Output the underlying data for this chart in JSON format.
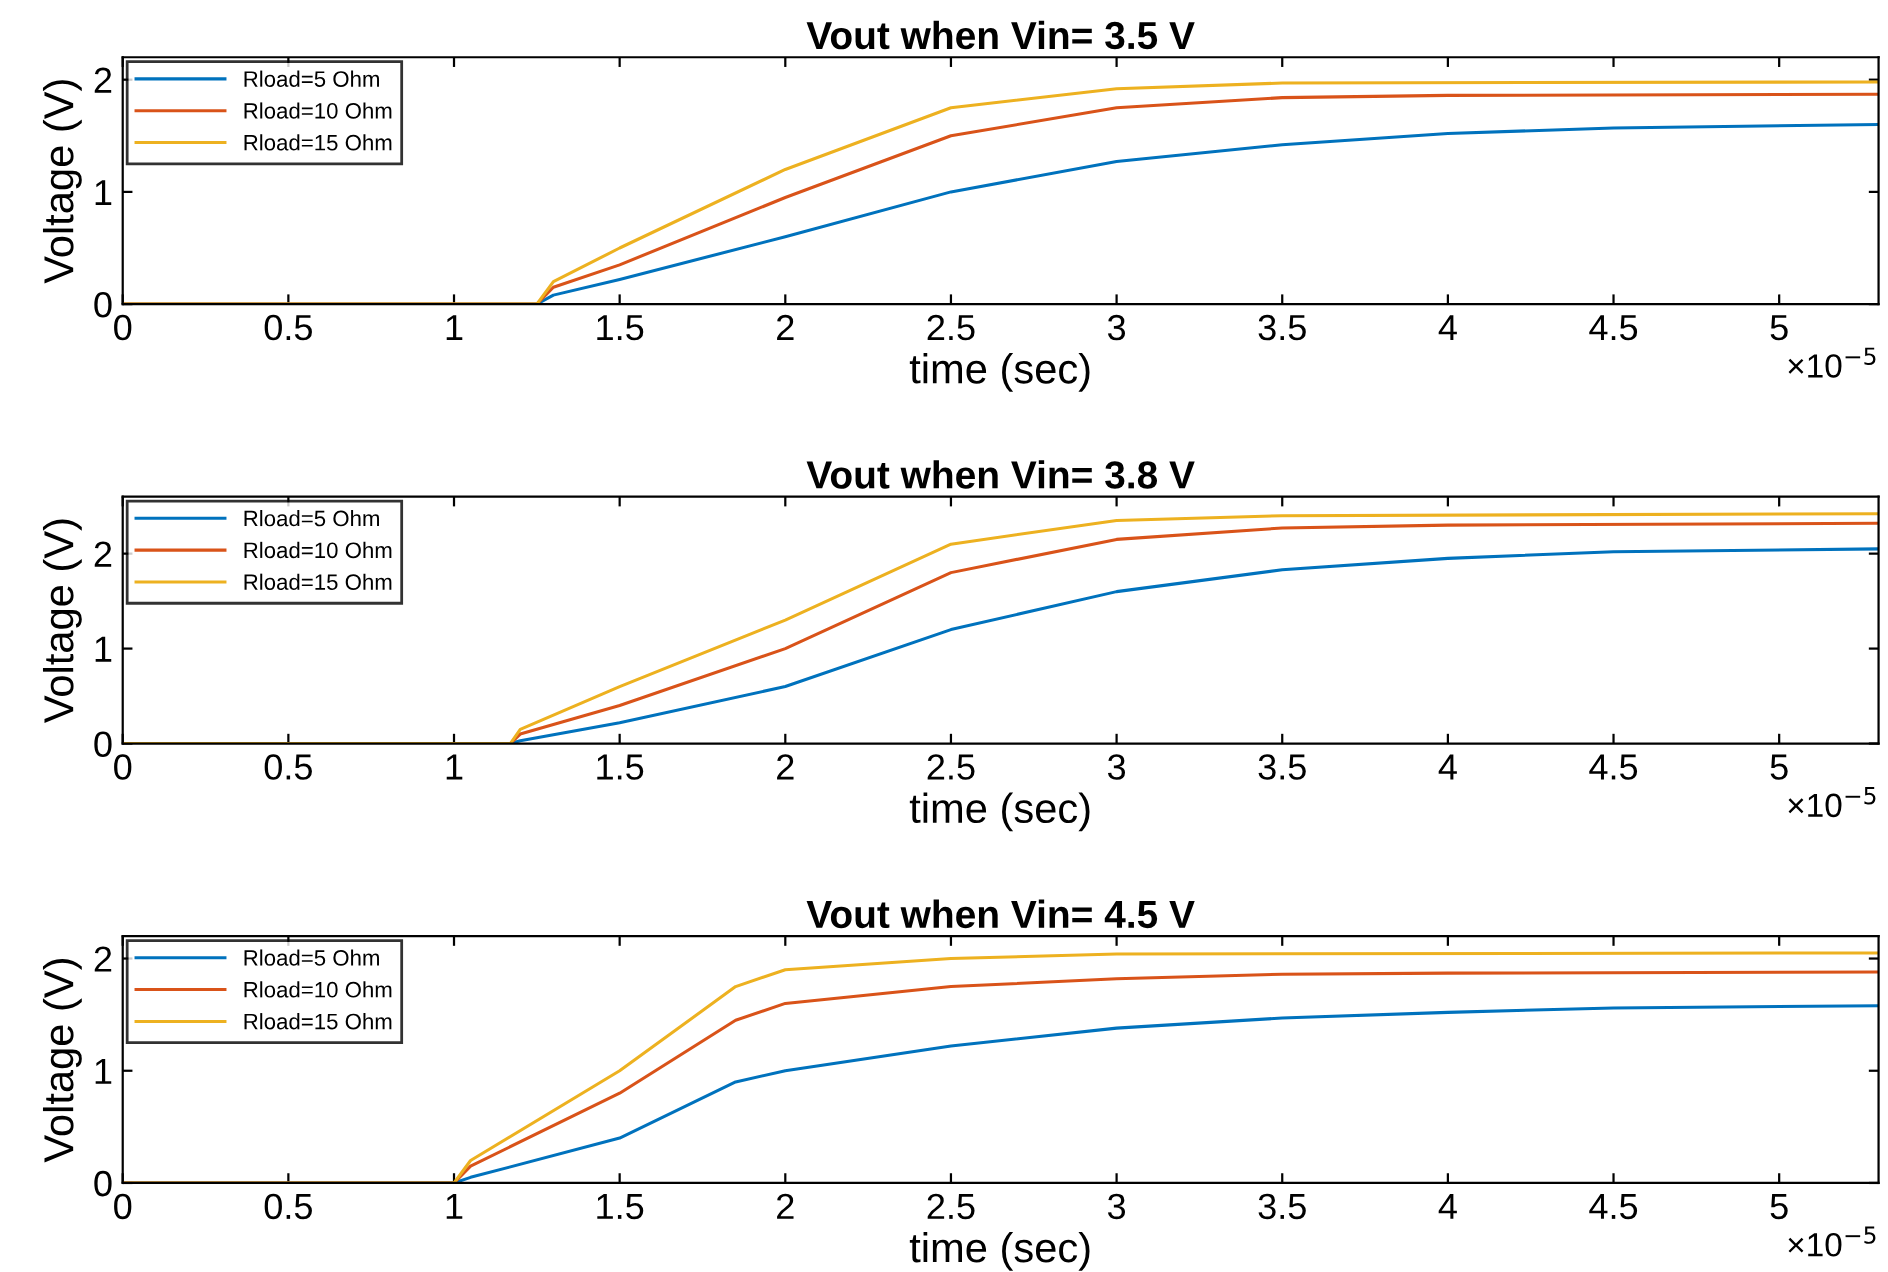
{
  "chart_data": [
    {
      "type": "line",
      "title": "Vout when Vin= 3.5 V",
      "xlabel": "time (sec)",
      "ylabel": "Voltage (V)",
      "annotations": [
        "×10$^{−5}$"
      ],
      "xlim": [
        0,
        5.3
      ],
      "xticks": [
        0,
        0.5,
        1,
        1.5,
        2,
        2.5,
        3,
        3.5,
        4,
        4.5,
        5
      ],
      "ylim": [
        0,
        2.2
      ],
      "yticks": [
        0,
        1,
        2
      ],
      "grid": false,
      "legend": "top left",
      "line_style": "solid",
      "marker": "none",
      "series": [
        {
          "name": "Rload=5 Ohm",
          "color": "#0072bd",
          "x": [
            0,
            1.25,
            1.3,
            1.5,
            2,
            2.5,
            3,
            3.5,
            4,
            4.5,
            5.3
          ],
          "values": [
            0,
            0,
            0.08,
            0.22,
            0.6,
            1.0,
            1.27,
            1.42,
            1.52,
            1.57,
            1.6
          ]
        },
        {
          "name": "Rload=10 Ohm",
          "color": "#d95319",
          "x": [
            0,
            1.25,
            1.3,
            1.5,
            2,
            2.5,
            3,
            3.5,
            4,
            5.3
          ],
          "values": [
            0,
            0,
            0.15,
            0.35,
            0.95,
            1.5,
            1.75,
            1.84,
            1.86,
            1.87
          ]
        },
        {
          "name": "Rload=15 Ohm",
          "color": "#edb120",
          "x": [
            0,
            1.25,
            1.3,
            1.5,
            2,
            2.5,
            3,
            3.5,
            5.3
          ],
          "values": [
            0,
            0,
            0.2,
            0.5,
            1.2,
            1.75,
            1.92,
            1.97,
            1.98
          ]
        }
      ]
    },
    {
      "type": "line",
      "title": "Vout when Vin= 3.8 V",
      "xlabel": "time (sec)",
      "ylabel": "Voltage (V)",
      "annotations": [
        "×10$^{−5}$"
      ],
      "xlim": [
        0,
        5.3
      ],
      "xticks": [
        0,
        0.5,
        1,
        1.5,
        2,
        2.5,
        3,
        3.5,
        4,
        4.5,
        5
      ],
      "ylim": [
        0,
        2.6
      ],
      "yticks": [
        0,
        1,
        2
      ],
      "grid": false,
      "legend": "top left",
      "line_style": "solid",
      "marker": "none",
      "series": [
        {
          "name": "Rload=5 Ohm",
          "color": "#0072bd",
          "x": [
            0,
            1.17,
            1.2,
            1.5,
            2,
            2.5,
            3,
            3.5,
            4,
            4.5,
            5.3
          ],
          "values": [
            0,
            0,
            0.03,
            0.22,
            0.6,
            1.2,
            1.6,
            1.83,
            1.95,
            2.02,
            2.05
          ]
        },
        {
          "name": "Rload=10 Ohm",
          "color": "#d95319",
          "x": [
            0,
            1.17,
            1.2,
            1.5,
            2,
            2.5,
            3,
            3.5,
            4,
            5.3
          ],
          "values": [
            0,
            0,
            0.1,
            0.4,
            1.0,
            1.8,
            2.15,
            2.27,
            2.3,
            2.32
          ]
        },
        {
          "name": "Rload=15 Ohm",
          "color": "#edb120",
          "x": [
            0,
            1.17,
            1.2,
            1.5,
            2,
            2.5,
            3,
            3.5,
            5.3
          ],
          "values": [
            0,
            0,
            0.15,
            0.6,
            1.3,
            2.1,
            2.35,
            2.4,
            2.42
          ]
        }
      ]
    },
    {
      "type": "line",
      "title": "Vout when Vin= 4.5 V",
      "xlabel": "time (sec)",
      "ylabel": "Voltage (V)",
      "annotations": [
        "×10$^{−5}$"
      ],
      "xlim": [
        0,
        5.3
      ],
      "xticks": [
        0,
        0.5,
        1,
        1.5,
        2,
        2.5,
        3,
        3.5,
        4,
        4.5,
        5
      ],
      "ylim": [
        0,
        2.2
      ],
      "yticks": [
        0,
        1,
        2
      ],
      "grid": false,
      "legend": "top left",
      "line_style": "solid",
      "marker": "none",
      "series": [
        {
          "name": "Rload=5 Ohm",
          "color": "#0072bd",
          "x": [
            0,
            1.0,
            1.05,
            1.5,
            1.85,
            2,
            2.5,
            3,
            3.5,
            4,
            4.5,
            5.3
          ],
          "values": [
            0,
            0,
            0.05,
            0.4,
            0.9,
            1.0,
            1.22,
            1.38,
            1.47,
            1.52,
            1.56,
            1.58
          ]
        },
        {
          "name": "Rload=10 Ohm",
          "color": "#d95319",
          "x": [
            0,
            1.0,
            1.05,
            1.5,
            1.85,
            2,
            2.5,
            3,
            3.5,
            4,
            5.3
          ],
          "values": [
            0,
            0,
            0.15,
            0.8,
            1.45,
            1.6,
            1.75,
            1.82,
            1.86,
            1.87,
            1.88
          ]
        },
        {
          "name": "Rload=15 Ohm",
          "color": "#edb120",
          "x": [
            0,
            1.0,
            1.05,
            1.5,
            1.85,
            2,
            2.5,
            3,
            5.3
          ],
          "values": [
            0,
            0,
            0.2,
            1.0,
            1.75,
            1.9,
            2.0,
            2.04,
            2.05
          ]
        }
      ]
    }
  ]
}
